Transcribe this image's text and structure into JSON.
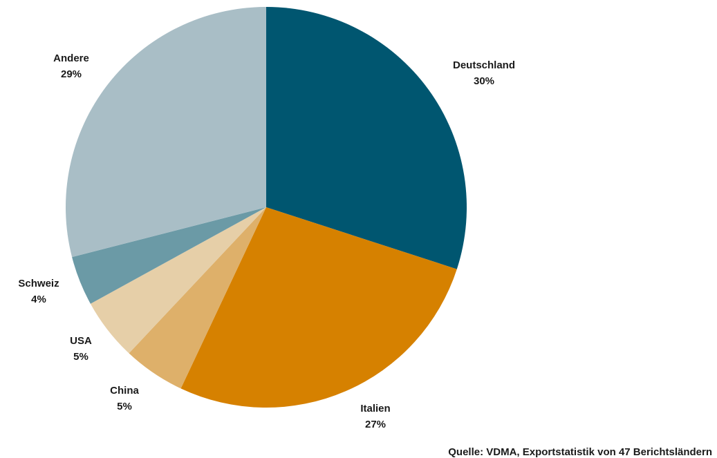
{
  "chart_data": {
    "type": "pie",
    "categories": [
      "Deutschland",
      "Italien",
      "China",
      "USA",
      "Schweiz",
      "Andere"
    ],
    "values": [
      30,
      27,
      5,
      5,
      4,
      29
    ],
    "value_labels": [
      "30%",
      "27%",
      "5%",
      "5%",
      "4%",
      "29%"
    ],
    "colors": [
      "#005670",
      "#d68100",
      "#deb06a",
      "#e6cfa8",
      "#6b9aa6",
      "#a9bec6"
    ],
    "source": "Quelle: VDMA, Exportstatistik von 47 Berichtsländern"
  }
}
